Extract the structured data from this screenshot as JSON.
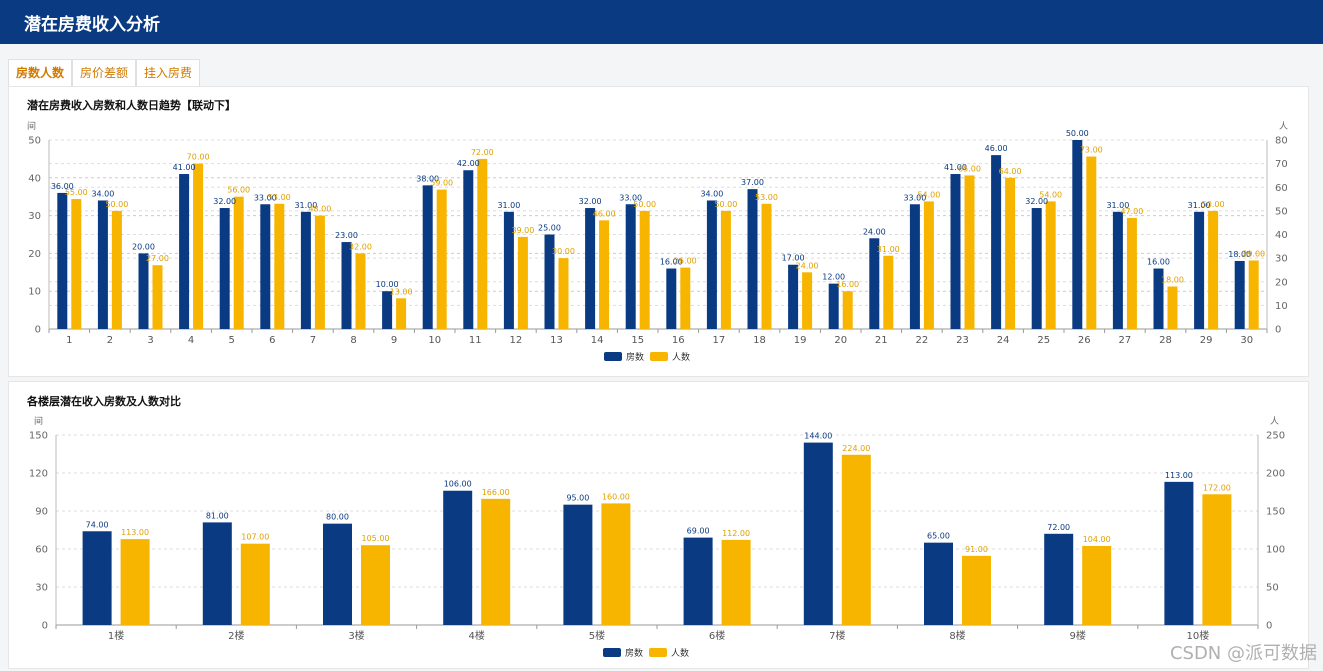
{
  "header": {
    "title": "潜在房费收入分析"
  },
  "tabs": [
    {
      "label": "房数人数"
    },
    {
      "label": "房价差额"
    },
    {
      "label": "挂入房费"
    }
  ],
  "colors": {
    "rooms": "#0a3a82",
    "people": "#f7b500",
    "header": "#0a3a82"
  },
  "watermark": "CSDN @派可数据",
  "chart_data": [
    {
      "type": "bar",
      "title": "潜在房费收入房数和人数日趋势【联动下】",
      "left_unit": "间",
      "right_unit": "人",
      "categories": [
        "1",
        "2",
        "3",
        "4",
        "5",
        "6",
        "7",
        "8",
        "9",
        "10",
        "11",
        "12",
        "13",
        "14",
        "15",
        "16",
        "17",
        "18",
        "19",
        "20",
        "21",
        "22",
        "23",
        "24",
        "25",
        "26",
        "27",
        "28",
        "29",
        "30"
      ],
      "series": [
        {
          "name": "房数",
          "axis": "left",
          "values": [
            36,
            34,
            20,
            41,
            32,
            33,
            31,
            23,
            10,
            38,
            42,
            31,
            25,
            32,
            33,
            16,
            34,
            37,
            17,
            12,
            24,
            33,
            41,
            46,
            32,
            50,
            31,
            16,
            31,
            18
          ]
        },
        {
          "name": "人数",
          "axis": "right",
          "values": [
            55,
            50,
            27,
            70,
            56,
            53,
            48,
            32,
            13,
            59,
            72,
            39,
            30,
            46,
            50,
            26,
            50,
            53,
            24,
            16,
            31,
            54,
            65,
            64,
            54,
            73,
            47,
            18,
            50,
            29
          ]
        }
      ],
      "ylim_left": [
        0,
        50
      ],
      "yticks_left": [
        0,
        10,
        20,
        30,
        40,
        50
      ],
      "ylim_right": [
        0,
        80
      ],
      "yticks_right": [
        0,
        10,
        20,
        30,
        40,
        50,
        60,
        70,
        80
      ],
      "legend": "bottom-center",
      "grid": true
    },
    {
      "type": "bar",
      "title": "各楼层潜在收入房数及人数对比",
      "left_unit": "间",
      "right_unit": "人",
      "categories": [
        "1楼",
        "2楼",
        "3楼",
        "4楼",
        "5楼",
        "6楼",
        "7楼",
        "8楼",
        "9楼",
        "10楼"
      ],
      "series": [
        {
          "name": "房数",
          "axis": "left",
          "values": [
            74,
            81,
            80,
            106,
            95,
            69,
            144,
            65,
            72,
            113
          ]
        },
        {
          "name": "人数",
          "axis": "right",
          "values": [
            113,
            107,
            105,
            166,
            160,
            112,
            224,
            91,
            104,
            172
          ]
        }
      ],
      "ylim_left": [
        0,
        150
      ],
      "yticks_left": [
        0,
        30,
        60,
        90,
        120,
        150
      ],
      "ylim_right": [
        0,
        250
      ],
      "yticks_right": [
        0,
        50,
        100,
        150,
        200,
        250
      ],
      "legend": "bottom-center",
      "grid": true
    }
  ]
}
